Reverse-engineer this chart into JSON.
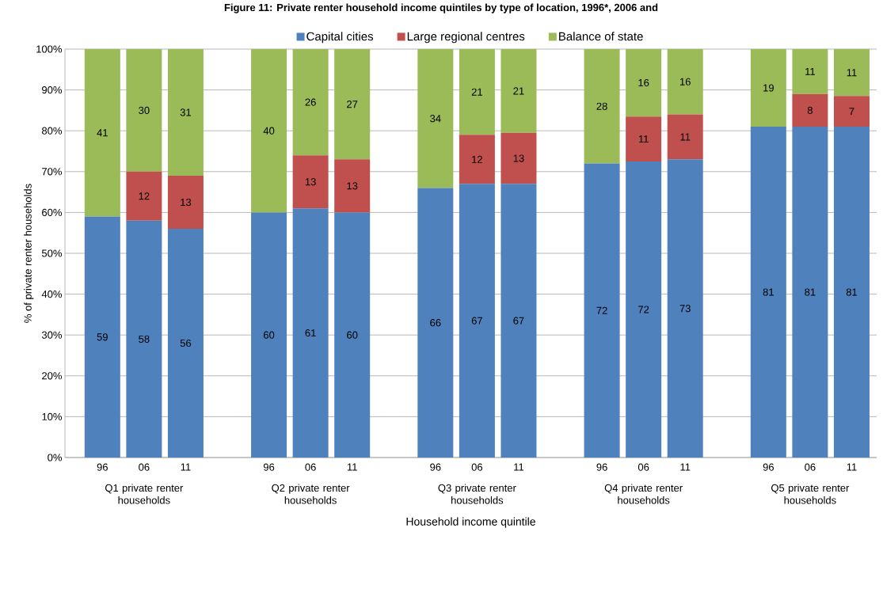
{
  "chart_data": {
    "type": "bar",
    "stacked": true,
    "title": "Figure 11: Private renter household income quintiles by type of location, 1996*, 2006 and",
    "xlabel": "Household income quintile",
    "ylabel": "% of private renter households",
    "categories": [
      "96",
      "06",
      "11",
      null,
      "96",
      "06",
      "11",
      null,
      "96",
      "06",
      "11",
      null,
      "96",
      "06",
      "11",
      null,
      "96",
      "06",
      "11"
    ],
    "series": [
      {
        "name": "Capital cities",
        "color": "#4f81bd",
        "values": [
          59,
          58,
          56,
          null,
          60,
          61,
          60,
          null,
          66,
          67,
          67,
          null,
          72,
          72.5,
          73,
          null,
          81,
          81,
          81
        ],
        "value_labels": [
          "59",
          "58",
          "56",
          null,
          "60",
          "61",
          "60",
          null,
          "66",
          "67",
          "67",
          null,
          "72",
          "72",
          "73",
          null,
          "81",
          "81",
          "81"
        ]
      },
      {
        "name": "Large regional centres",
        "color": "#c0504d",
        "values": [
          null,
          12,
          13,
          null,
          null,
          13,
          13,
          null,
          null,
          12,
          12.5,
          null,
          null,
          11,
          11,
          null,
          null,
          8,
          7.5
        ],
        "value_labels": [
          null,
          "12",
          "13",
          null,
          null,
          "13",
          "13",
          null,
          null,
          "12",
          "13",
          null,
          null,
          "11",
          "11",
          null,
          null,
          "8",
          "7"
        ]
      },
      {
        "name": "Balance of state",
        "color": "#9bbb59",
        "values": [
          41,
          30,
          31,
          null,
          40,
          26,
          27,
          null,
          34,
          21,
          20.5,
          null,
          28,
          16.5,
          16,
          null,
          19,
          11,
          11.5
        ],
        "value_labels": [
          "41",
          "30",
          "31",
          null,
          "40",
          "26",
          "27",
          null,
          "34",
          "21",
          "21",
          null,
          "28",
          "16",
          "16",
          null,
          "19",
          "11",
          "11"
        ]
      }
    ],
    "annotations": [
      "Q1 private renter households",
      "Q2 private renter households",
      "Q3 private renter households",
      "Q4 private renter households",
      "Q5 private renter households"
    ],
    "ylim": [
      0,
      100
    ],
    "yticks": [
      {
        "value": 0,
        "label": "0%"
      },
      {
        "value": 10,
        "label": "10%"
      },
      {
        "value": 20,
        "label": "20%"
      },
      {
        "value": 30,
        "label": "30%"
      },
      {
        "value": 40,
        "label": "40%"
      },
      {
        "value": 50,
        "label": "50%"
      },
      {
        "value": 60,
        "label": "60%"
      },
      {
        "value": 70,
        "label": "70%"
      },
      {
        "value": 80,
        "label": "80%"
      },
      {
        "value": 90,
        "label": "90%"
      },
      {
        "value": 100,
        "label": "100%"
      }
    ],
    "grid": "y",
    "legend": "top"
  }
}
